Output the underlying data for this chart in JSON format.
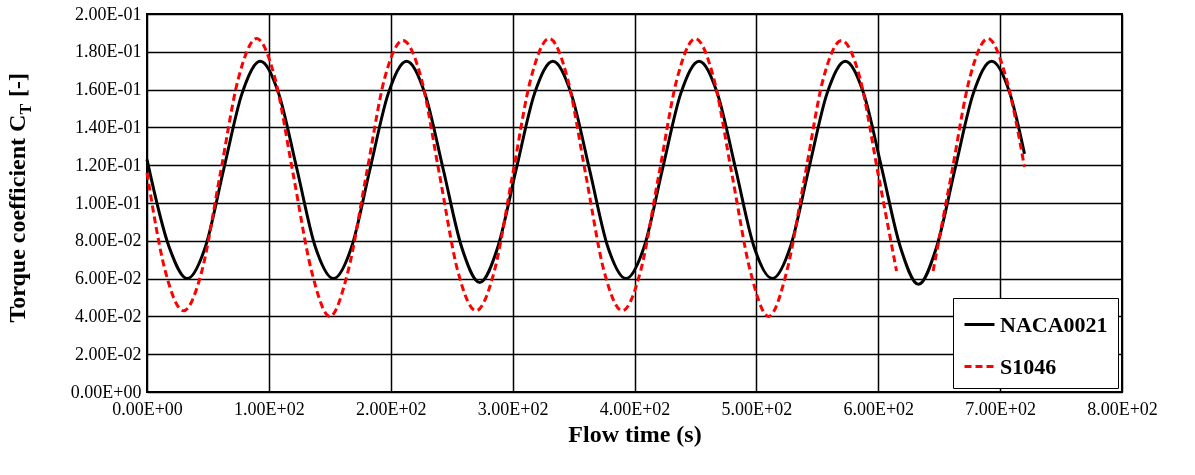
{
  "chart_data": {
    "type": "line",
    "xlabel": "Flow time (s)",
    "ylabel": "Torque coefficient C$_{T}$ [-]",
    "xlim": [
      0,
      800
    ],
    "xticks": [
      {
        "value": 0,
        "label": "0.00E+00"
      },
      {
        "value": 100,
        "label": "1.00E+02"
      },
      {
        "value": 200,
        "label": "2.00E+02"
      },
      {
        "value": 300,
        "label": "3.00E+02"
      },
      {
        "value": 400,
        "label": "4.00E+02"
      },
      {
        "value": 500,
        "label": "5.00E+02"
      },
      {
        "value": 600,
        "label": "6.00E+02"
      },
      {
        "value": 700,
        "label": "7.00E+02"
      },
      {
        "value": 800,
        "label": "8.00E+02"
      }
    ],
    "ylim": [
      0,
      0.2
    ],
    "yticks": [
      {
        "value": 0,
        "label": "0.00E+00"
      },
      {
        "value": 0.02,
        "label": "2.00E-02"
      },
      {
        "value": 0.04,
        "label": "4.00E-02"
      },
      {
        "value": 0.06,
        "label": "6.00E-02"
      },
      {
        "value": 0.08,
        "label": "8.00E-02"
      },
      {
        "value": 0.1,
        "label": "1.00E-01"
      },
      {
        "value": 0.12,
        "label": "1.20E-01"
      },
      {
        "value": 0.14,
        "label": "1.40E-01"
      },
      {
        "value": 0.16,
        "label": "1.60E-01"
      },
      {
        "value": 0.18,
        "label": "1.80E-01"
      },
      {
        "value": 0.2,
        "label": "2.00E-01"
      }
    ],
    "grid": true,
    "legend": "bottom right",
    "marker": "none",
    "series": [
      {
        "name": "NACA0021",
        "color": "#000000",
        "line_style": "solid",
        "x": [
          0,
          18,
          33,
          48,
          63,
          78,
          93,
          108,
          123,
          138,
          153,
          168,
          183,
          198,
          213,
          228,
          243,
          258,
          273,
          288,
          303,
          318,
          333,
          348,
          363,
          378,
          393,
          408,
          423,
          438,
          453,
          468,
          483,
          498,
          513,
          528,
          543,
          558,
          573,
          588,
          603,
          618,
          633,
          648,
          663,
          678,
          693,
          708,
          720
        ],
        "values": [
          0.123,
          0.077,
          0.06,
          0.077,
          0.118,
          0.158,
          0.175,
          0.158,
          0.118,
          0.077,
          0.06,
          0.077,
          0.118,
          0.158,
          0.175,
          0.158,
          0.118,
          0.077,
          0.058,
          0.077,
          0.118,
          0.158,
          0.175,
          0.158,
          0.118,
          0.077,
          0.06,
          0.077,
          0.118,
          0.158,
          0.175,
          0.158,
          0.118,
          0.077,
          0.06,
          0.077,
          0.118,
          0.158,
          0.175,
          0.158,
          0.118,
          0.077,
          0.057,
          0.077,
          0.118,
          0.158,
          0.175,
          0.158,
          0.126
        ]
      },
      {
        "name": "S1046",
        "color": "#ff0000",
        "line_style": "dashed",
        "x": [
          0,
          15,
          30,
          45,
          60,
          75,
          90,
          105,
          120,
          135,
          150,
          165,
          180,
          195,
          210,
          225,
          240,
          255,
          270,
          285,
          300,
          315,
          330,
          345,
          360,
          375,
          390,
          405,
          420,
          435,
          450,
          465,
          480,
          495,
          510,
          525,
          540,
          555,
          570,
          585,
          600,
          615,
          630,
          645,
          660,
          675,
          690,
          705,
          720
        ],
        "values": [
          0.116,
          0.064,
          0.043,
          0.064,
          0.115,
          0.166,
          0.187,
          0.166,
          0.115,
          0.064,
          0.04,
          0.064,
          0.115,
          0.166,
          0.186,
          0.166,
          0.115,
          0.064,
          0.043,
          0.064,
          0.115,
          0.166,
          0.187,
          0.166,
          0.115,
          0.064,
          0.043,
          0.064,
          0.115,
          0.166,
          0.187,
          0.166,
          0.115,
          0.064,
          0.04,
          0.064,
          0.115,
          0.166,
          0.186,
          0.166,
          0.115,
          0.064,
          null,
          0.064,
          0.115,
          0.166,
          0.187,
          0.166,
          0.119
        ]
      }
    ]
  }
}
